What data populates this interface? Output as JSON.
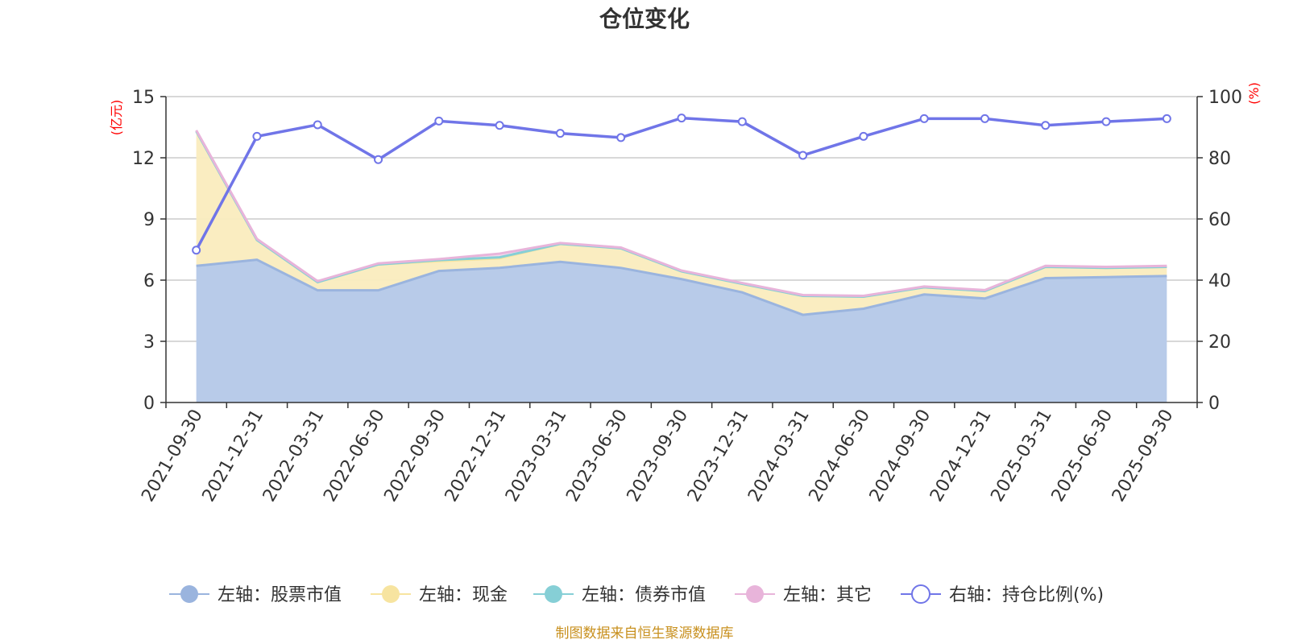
{
  "chart_data": {
    "type": "area",
    "title": "仓位变化",
    "source_note": "制图数据来自恒生聚源数据库",
    "categories": [
      "2021-09-30",
      "2021-12-31",
      "2022-03-31",
      "2022-06-30",
      "2022-09-30",
      "2022-12-31",
      "2023-03-31",
      "2023-06-30",
      "2023-09-30",
      "2023-12-31",
      "2024-03-31",
      "2024-06-30",
      "2024-09-30",
      "2024-12-31",
      "2025-03-31",
      "2025-06-30",
      "2025-09-30"
    ],
    "left_axis": {
      "unit_label": "(亿元)",
      "ylim": [
        0,
        15
      ],
      "ticks": [
        "0",
        "3",
        "6",
        "9",
        "12",
        "15"
      ]
    },
    "right_axis": {
      "unit_label": "(%)",
      "ylim": [
        0,
        100
      ],
      "ticks": [
        "0",
        "20",
        "40",
        "60",
        "80",
        "100"
      ]
    },
    "series": [
      {
        "name": "左轴：股票市值",
        "axis": "left",
        "stack": true,
        "line_color": "#9ab4de",
        "fill_color": "#b8cbe9",
        "values": [
          6.7,
          7.0,
          5.5,
          5.5,
          6.45,
          6.6,
          6.9,
          6.6,
          6.05,
          5.4,
          4.3,
          4.6,
          5.3,
          5.1,
          6.1,
          6.15,
          6.2
        ]
      },
      {
        "name": "左轴：现金",
        "axis": "left",
        "stack": true,
        "line_color": "#f7e4a0",
        "fill_color": "#faecbe",
        "values": [
          6.6,
          0.97,
          0.4,
          1.27,
          0.48,
          0.47,
          0.88,
          0.96,
          0.38,
          0.42,
          0.93,
          0.59,
          0.35,
          0.37,
          0.55,
          0.45,
          0.45
        ]
      },
      {
        "name": "左轴：债券市值",
        "axis": "left",
        "stack": true,
        "line_color": "#86cfd6",
        "fill_color": "#bfe6e8",
        "values": [
          0,
          0,
          0,
          0,
          0.05,
          0.05,
          0,
          0,
          0,
          0,
          0,
          0,
          0,
          0,
          0,
          0,
          0
        ]
      },
      {
        "name": "左轴：其它",
        "axis": "left",
        "stack": true,
        "line_color": "#e8b4da",
        "fill_color": "#f3d6ec",
        "values": [
          0.05,
          0.05,
          0.05,
          0.05,
          0.05,
          0.18,
          0.04,
          0.04,
          0.04,
          0.04,
          0.04,
          0.04,
          0.04,
          0.04,
          0.05,
          0.05,
          0.05
        ]
      },
      {
        "name": "右轴：持仓比例(%)",
        "axis": "right",
        "stack": false,
        "line_color": "#7075e8",
        "fill_color": "#ffffff",
        "values": [
          49.8,
          87.0,
          90.8,
          79.4,
          92.0,
          90.6,
          88.0,
          86.6,
          93.0,
          91.8,
          80.8,
          87.0,
          92.8,
          92.8,
          90.6,
          91.8,
          92.8
        ]
      }
    ]
  }
}
